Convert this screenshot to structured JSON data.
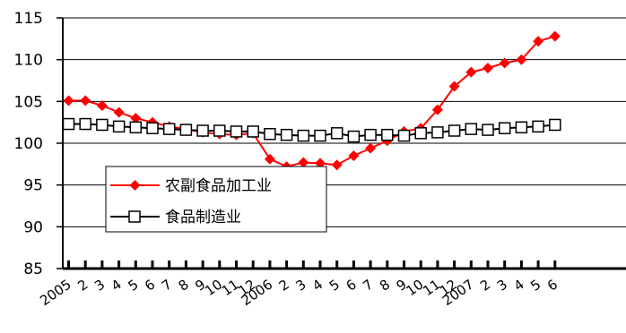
{
  "chart_data": {
    "type": "line",
    "title": "",
    "xlabel": "",
    "ylabel": "",
    "ylim": [
      85,
      115
    ],
    "yticks": [
      85,
      90,
      95,
      100,
      105,
      110,
      115
    ],
    "grid": "horizontal",
    "legend_position": "lower-left",
    "categories": [
      "2005",
      "2",
      "3",
      "4",
      "5",
      "6",
      "7",
      "8",
      "9",
      "10",
      "11",
      "12",
      "2006",
      "2",
      "3",
      "4",
      "5",
      "6",
      "7",
      "8",
      "9",
      "10",
      "11",
      "12",
      "2007",
      "2",
      "3",
      "4",
      "5",
      "6"
    ],
    "series": [
      {
        "name": "农副食品加工业",
        "color": "#ff0000",
        "marker": "filled-diamond",
        "values": [
          105.1,
          105.1,
          104.5,
          103.7,
          103.0,
          102.5,
          102.0,
          101.7,
          101.3,
          101.1,
          101.0,
          101.2,
          98.1,
          97.2,
          97.7,
          97.6,
          97.4,
          98.5,
          99.4,
          100.3,
          101.4,
          101.8,
          104.0,
          106.8,
          108.5,
          109.0,
          109.6,
          110.0,
          112.2,
          112.8
        ]
      },
      {
        "name": "食品制造业",
        "color": "#000000",
        "marker": "open-square",
        "values": [
          102.3,
          102.3,
          102.2,
          102.0,
          101.9,
          101.8,
          101.7,
          101.6,
          101.5,
          101.5,
          101.4,
          101.4,
          101.1,
          101.0,
          100.9,
          100.9,
          101.2,
          100.8,
          101.0,
          101.0,
          100.9,
          101.2,
          101.3,
          101.5,
          101.7,
          101.6,
          101.8,
          101.9,
          102.0,
          102.2
        ]
      }
    ]
  }
}
